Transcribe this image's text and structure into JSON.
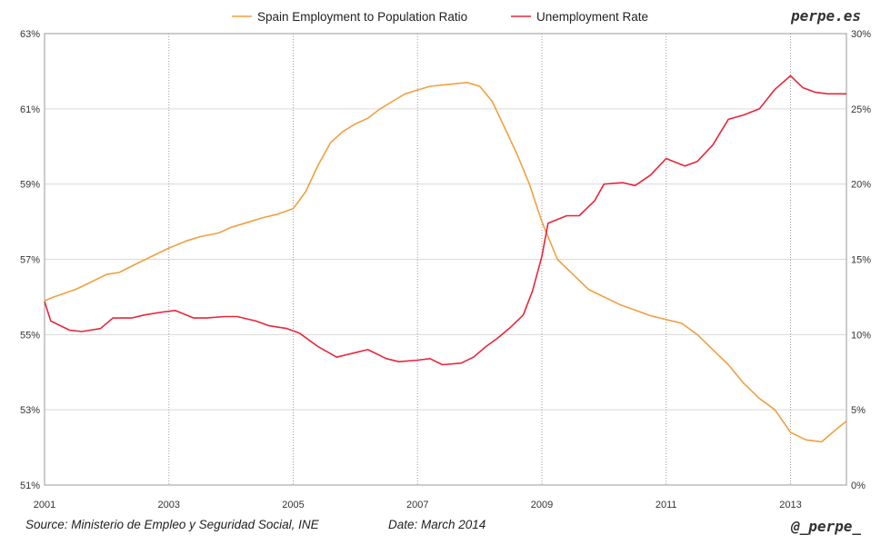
{
  "chart_data": {
    "type": "line",
    "x_ticks": [
      "2001",
      "2003",
      "2005",
      "2007",
      "2009",
      "2011",
      "2013"
    ],
    "y_left_ticks": [
      "51%",
      "53%",
      "55%",
      "57%",
      "59%",
      "61%",
      "63%"
    ],
    "y_right_ticks": [
      "0%",
      "5%",
      "10%",
      "15%",
      "20%",
      "25%",
      "30%"
    ],
    "ylim_left": [
      51,
      63
    ],
    "ylim_right": [
      0,
      30
    ],
    "xlim": [
      2001,
      2013.9
    ],
    "grid": true,
    "legend_position": "top",
    "series": [
      {
        "name": "Spain Employment to Population Ratio",
        "axis": "left",
        "color": "#f0a040",
        "x": [
          2001,
          2001.15,
          2001.5,
          2001.75,
          2002,
          2002.2,
          2002.5,
          2002.75,
          2003,
          2003.3,
          2003.5,
          2003.8,
          2004,
          2004.2,
          2004.5,
          2004.75,
          2005,
          2005.2,
          2005.4,
          2005.6,
          2005.8,
          2006,
          2006.2,
          2006.4,
          2006.6,
          2006.8,
          2007,
          2007.2,
          2007.5,
          2007.8,
          2008,
          2008.2,
          2008.4,
          2008.6,
          2008.8,
          2009,
          2009.25,
          2009.5,
          2009.75,
          2010,
          2010.25,
          2010.5,
          2010.75,
          2011,
          2011.25,
          2011.5,
          2011.75,
          2012,
          2012.25,
          2012.5,
          2012.75,
          2013,
          2013.25,
          2013.5,
          2013.75,
          2013.9
        ],
        "values": [
          55.9,
          56.0,
          56.2,
          56.4,
          56.6,
          56.65,
          56.9,
          57.1,
          57.3,
          57.5,
          57.6,
          57.7,
          57.85,
          57.95,
          58.1,
          58.2,
          58.35,
          58.8,
          59.5,
          60.1,
          60.4,
          60.6,
          60.75,
          61.0,
          61.2,
          61.4,
          61.5,
          61.6,
          61.65,
          61.7,
          61.6,
          61.2,
          60.5,
          59.8,
          59.0,
          58.0,
          57.0,
          56.6,
          56.2,
          56.0,
          55.8,
          55.65,
          55.5,
          55.4,
          55.3,
          55.0,
          54.6,
          54.2,
          53.7,
          53.3,
          53.0,
          52.4,
          52.2,
          52.15,
          52.5,
          52.7
        ]
      },
      {
        "name": "Unemployment Rate",
        "axis": "right",
        "color": "#e8263a",
        "x": [
          2001,
          2001.1,
          2001.4,
          2001.6,
          2001.9,
          2002.1,
          2002.4,
          2002.6,
          2002.9,
          2003.1,
          2003.4,
          2003.6,
          2003.9,
          2004.1,
          2004.4,
          2004.6,
          2004.9,
          2005.1,
          2005.4,
          2005.7,
          2006,
          2006.2,
          2006.5,
          2006.7,
          2007,
          2007.2,
          2007.4,
          2007.7,
          2007.9,
          2008.1,
          2008.3,
          2008.5,
          2008.7,
          2008.85,
          2009,
          2009.1,
          2009.4,
          2009.6,
          2009.85,
          2010,
          2010.3,
          2010.5,
          2010.75,
          2011,
          2011.3,
          2011.5,
          2011.75,
          2012,
          2012.25,
          2012.5,
          2012.75,
          2013,
          2013.2,
          2013.4,
          2013.6,
          2013.9
        ],
        "values": [
          12.2,
          10.9,
          10.3,
          10.2,
          10.4,
          11.1,
          11.1,
          11.3,
          11.5,
          11.6,
          11.1,
          11.1,
          11.2,
          11.2,
          10.9,
          10.6,
          10.4,
          10.1,
          9.2,
          8.5,
          8.8,
          9.0,
          8.4,
          8.2,
          8.3,
          8.4,
          8.0,
          8.1,
          8.5,
          9.2,
          9.8,
          10.5,
          11.3,
          12.9,
          15.2,
          17.4,
          17.9,
          17.9,
          18.9,
          20.0,
          20.1,
          19.9,
          20.6,
          21.7,
          21.2,
          21.5,
          22.6,
          24.3,
          24.6,
          25.0,
          26.3,
          27.2,
          26.4,
          26.1,
          26.0,
          26.0
        ]
      }
    ]
  },
  "labels": {
    "brand": "perpe.es",
    "source": "Source: Ministerio de Empleo y Seguridad Social, INE",
    "date": "Date: March 2014",
    "handle": "@_perpe_"
  }
}
